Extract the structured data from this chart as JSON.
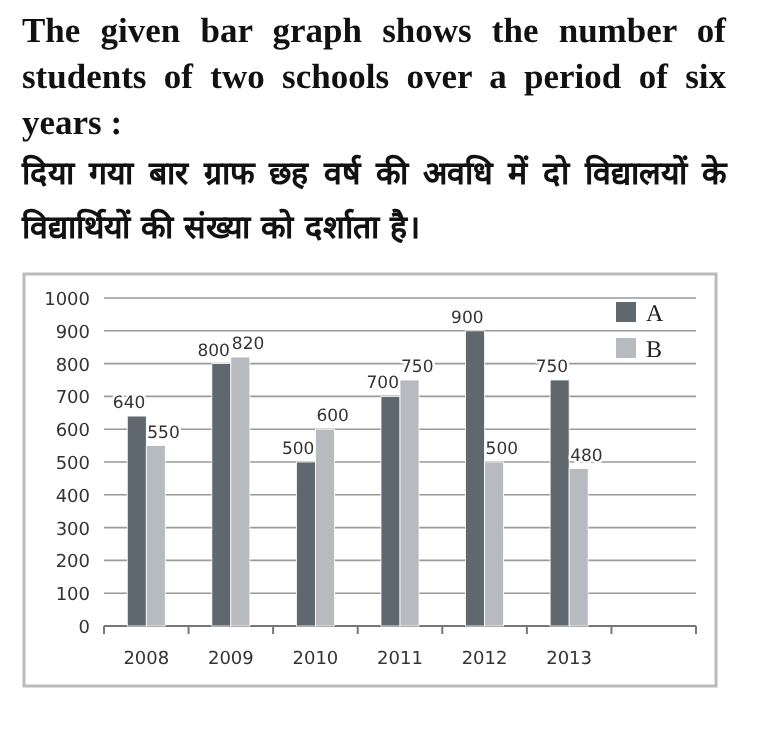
{
  "chart_data": {
    "type": "bar",
    "title": "The given bar graph shows the number of students of two schools over a period of six years :",
    "subtitle": "दिया गया बार ग्राफ छह वर्ष की अवधि में दो विद्यालयों के विद्यार्थियों की संख्या को दर्शाता है।",
    "categories": [
      "2008",
      "2009",
      "2010",
      "2011",
      "2012",
      "2013",
      null
    ],
    "series": [
      {
        "name": "A",
        "color": "#5f686e",
        "values": [
          640,
          800,
          500,
          700,
          900,
          750,
          null
        ]
      },
      {
        "name": "B",
        "color": "#b7babe",
        "values": [
          550,
          820,
          600,
          750,
          500,
          480,
          null
        ]
      }
    ],
    "ylim": [
      0,
      1000
    ],
    "yticks": [
      0,
      100,
      200,
      300,
      400,
      500,
      600,
      700,
      800,
      900,
      1000
    ],
    "grid": "y",
    "legend": "top right",
    "data_labels": true
  }
}
